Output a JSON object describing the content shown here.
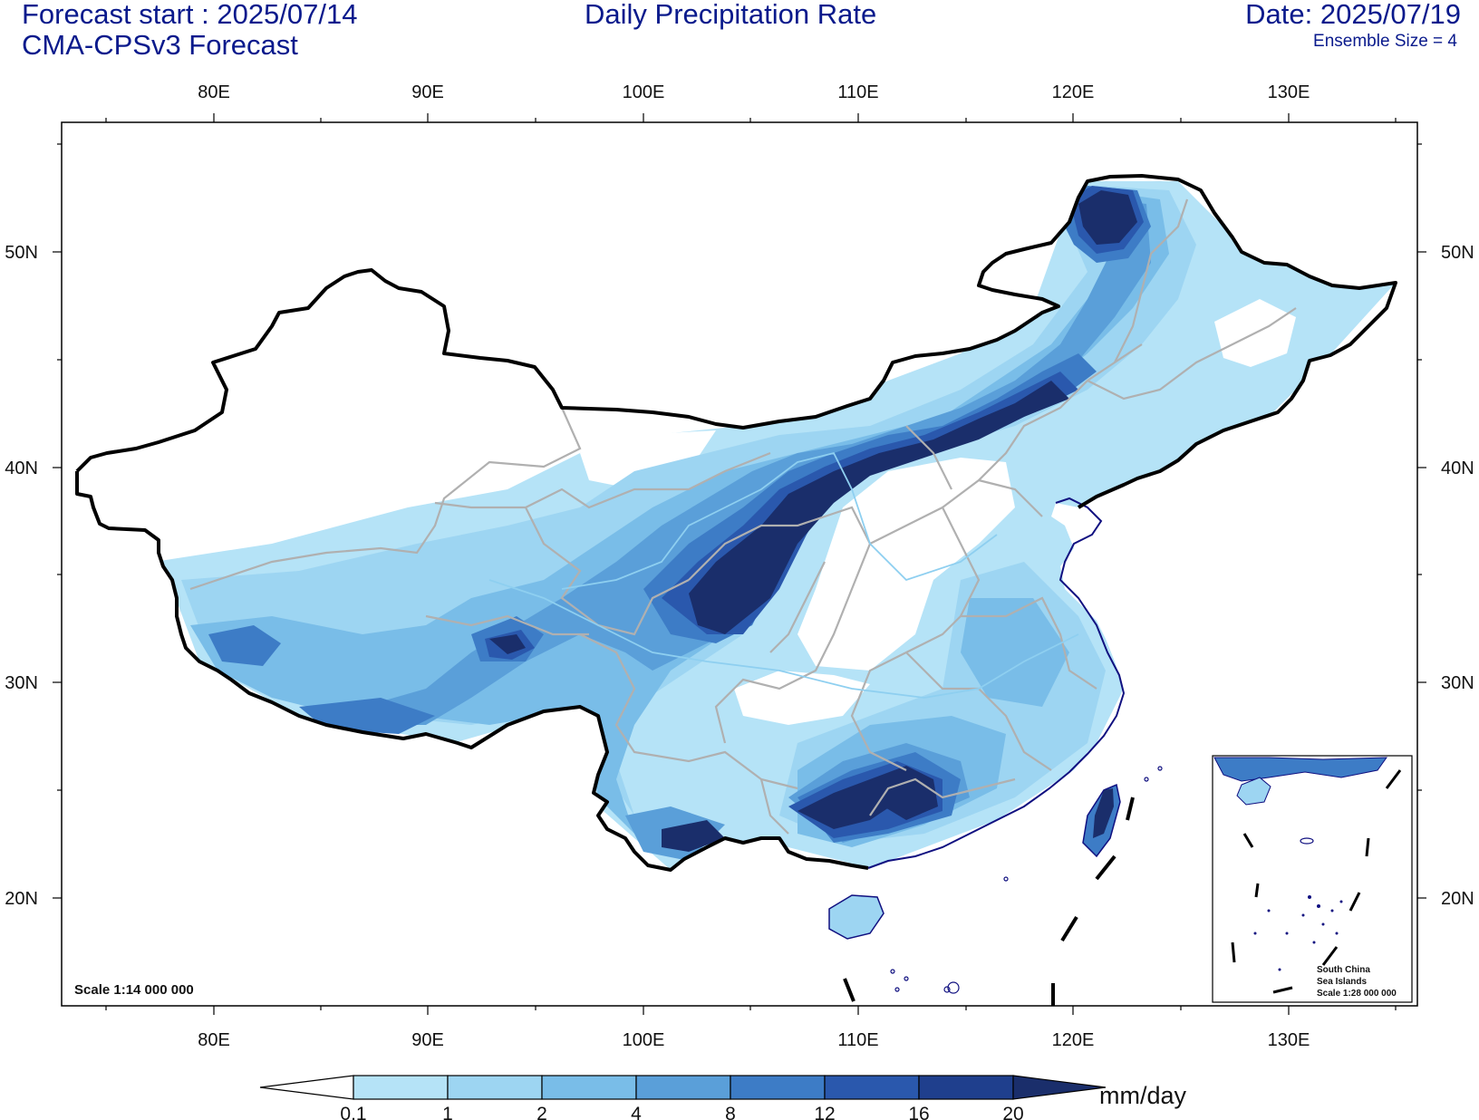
{
  "header": {
    "forecast_start": "Forecast start : 2025/07/14",
    "model": "CMA-CPSv3 Forecast",
    "title": "Daily Precipitation Rate",
    "date": "Date: 2025/07/19",
    "ensemble": "Ensemble Size = 4"
  },
  "axes": {
    "lon_labels": [
      "80E",
      "90E",
      "100E",
      "110E",
      "120E",
      "130E"
    ],
    "lat_labels": [
      "50N",
      "40N",
      "30N",
      "20N"
    ]
  },
  "map": {
    "scale": "Scale 1:14 000 000",
    "inset": {
      "line1": "South China",
      "line2": "Sea Islands",
      "line3": "Scale 1:28 000 000"
    }
  },
  "colorbar": {
    "levels": [
      "0.1",
      "1",
      "2",
      "4",
      "8",
      "12",
      "16",
      "20"
    ],
    "colors": [
      "#ffffff",
      "#b5e3f7",
      "#9dd5f2",
      "#79bde8",
      "#5a9fd9",
      "#3d7cc6",
      "#2a58ad",
      "#1f3f8d",
      "#1a2e6b"
    ],
    "unit": "mm/day"
  },
  "palette": {
    "title_color": "#0a1a8c",
    "border_color": "#000000",
    "province_color": "#b0b0b0",
    "coast_color": "#101080"
  }
}
